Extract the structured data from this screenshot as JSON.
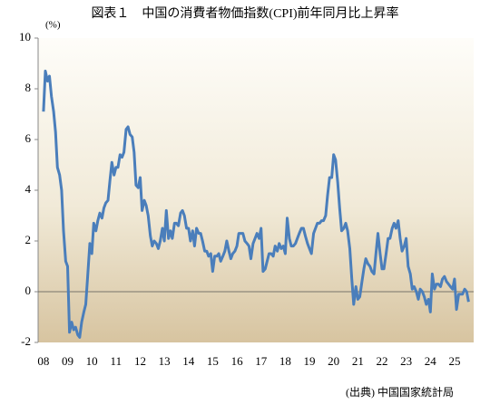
{
  "chart_data": {
    "type": "line",
    "title": "図表１　中国の消費者物価指数(CPI)前年同月比上昇率",
    "y_label": "(%)",
    "source": "(出典) 中国国家統計局",
    "xlim": [
      2007.78,
      2025.79
    ],
    "ylim": [
      -2,
      10
    ],
    "yticks": [
      -2,
      0,
      2,
      4,
      6,
      8,
      10
    ],
    "xticks": [
      {
        "value": 2008,
        "label": "08"
      },
      {
        "value": 2009,
        "label": "09"
      },
      {
        "value": 2010,
        "label": "10"
      },
      {
        "value": 2011,
        "label": "11"
      },
      {
        "value": 2012,
        "label": "12"
      },
      {
        "value": 2013,
        "label": "13"
      },
      {
        "value": 2014,
        "label": "14"
      },
      {
        "value": 2015,
        "label": "15"
      },
      {
        "value": 2016,
        "label": "16"
      },
      {
        "value": 2017,
        "label": "17"
      },
      {
        "value": 2018,
        "label": "18"
      },
      {
        "value": 2019,
        "label": "19"
      },
      {
        "value": 2020,
        "label": "20"
      },
      {
        "value": 2021,
        "label": "21"
      },
      {
        "value": 2022,
        "label": "22"
      },
      {
        "value": 2023,
        "label": "23"
      },
      {
        "value": 2024,
        "label": "24"
      },
      {
        "value": 2025,
        "label": "25"
      }
    ],
    "grid": false,
    "x": [
      2008,
      2008.08,
      2008.17,
      2008.25,
      2008.33,
      2008.42,
      2008.5,
      2008.58,
      2008.67,
      2008.75,
      2008.83,
      2008.92,
      2009,
      2009.08,
      2009.17,
      2009.25,
      2009.33,
      2009.42,
      2009.5,
      2009.58,
      2009.67,
      2009.75,
      2009.83,
      2009.92,
      2010,
      2010.08,
      2010.17,
      2010.25,
      2010.33,
      2010.42,
      2010.5,
      2010.58,
      2010.67,
      2010.75,
      2010.83,
      2010.92,
      2011,
      2011.08,
      2011.17,
      2011.25,
      2011.33,
      2011.42,
      2011.5,
      2011.58,
      2011.67,
      2011.75,
      2011.83,
      2011.92,
      2012,
      2012.08,
      2012.17,
      2012.25,
      2012.33,
      2012.42,
      2012.5,
      2012.58,
      2012.67,
      2012.75,
      2012.83,
      2012.92,
      2013,
      2013.08,
      2013.17,
      2013.25,
      2013.33,
      2013.42,
      2013.5,
      2013.58,
      2013.67,
      2013.75,
      2013.83,
      2013.92,
      2014,
      2014.08,
      2014.17,
      2014.25,
      2014.33,
      2014.42,
      2014.5,
      2014.58,
      2014.67,
      2014.75,
      2014.83,
      2014.92,
      2015,
      2015.08,
      2015.17,
      2015.25,
      2015.33,
      2015.42,
      2015.5,
      2015.58,
      2015.67,
      2015.75,
      2015.83,
      2015.92,
      2016,
      2016.08,
      2016.17,
      2016.25,
      2016.33,
      2016.42,
      2016.5,
      2016.58,
      2016.67,
      2016.75,
      2016.83,
      2016.92,
      2017,
      2017.08,
      2017.17,
      2017.25,
      2017.33,
      2017.42,
      2017.5,
      2017.58,
      2017.67,
      2017.75,
      2017.83,
      2017.92,
      2018,
      2018.08,
      2018.17,
      2018.25,
      2018.33,
      2018.42,
      2018.5,
      2018.58,
      2018.67,
      2018.75,
      2018.83,
      2018.92,
      2019,
      2019.08,
      2019.17,
      2019.25,
      2019.33,
      2019.42,
      2019.5,
      2019.58,
      2019.67,
      2019.75,
      2019.83,
      2019.92,
      2020,
      2020.08,
      2020.17,
      2020.25,
      2020.33,
      2020.42,
      2020.5,
      2020.58,
      2020.67,
      2020.75,
      2020.83,
      2020.92,
      2021,
      2021.08,
      2021.17,
      2021.25,
      2021.33,
      2021.42,
      2021.5,
      2021.58,
      2021.67,
      2021.75,
      2021.83,
      2021.92,
      2022,
      2022.08,
      2022.17,
      2022.25,
      2022.33,
      2022.42,
      2022.5,
      2022.58,
      2022.67,
      2022.75,
      2022.83,
      2022.92,
      2023,
      2023.08,
      2023.17,
      2023.25,
      2023.33,
      2023.42,
      2023.5,
      2023.58,
      2023.67,
      2023.75,
      2023.83,
      2023.92,
      2024,
      2024.08,
      2024.17,
      2024.25,
      2024.33,
      2024.42,
      2024.5,
      2024.58,
      2024.67,
      2024.75,
      2024.83,
      2024.92,
      2025,
      2025.08,
      2025.17,
      2025.25,
      2025.33,
      2025.42,
      2025.5,
      2025.58
    ],
    "series": [
      {
        "color": "#4a7ebb",
        "values": [
          7.1,
          8.7,
          8.3,
          8.5,
          7.7,
          7.1,
          6.3,
          4.9,
          4.6,
          4.0,
          2.4,
          1.2,
          1.0,
          -1.6,
          -1.2,
          -1.5,
          -1.4,
          -1.7,
          -1.8,
          -1.2,
          -0.8,
          -0.5,
          0.6,
          1.9,
          1.5,
          2.7,
          2.4,
          2.8,
          3.1,
          2.9,
          3.3,
          3.5,
          3.6,
          4.4,
          5.1,
          4.6,
          4.9,
          4.9,
          5.4,
          5.3,
          5.5,
          6.4,
          6.5,
          6.2,
          6.1,
          5.5,
          4.2,
          4.1,
          4.5,
          3.2,
          3.6,
          3.4,
          3.0,
          2.2,
          1.8,
          2.0,
          1.9,
          1.7,
          2.0,
          2.5,
          2.0,
          3.2,
          2.1,
          2.4,
          2.1,
          2.7,
          2.7,
          2.6,
          3.1,
          3.2,
          3.0,
          2.5,
          2.5,
          2.0,
          2.4,
          1.8,
          2.5,
          2.3,
          2.3,
          2.0,
          1.6,
          1.6,
          1.4,
          1.5,
          0.8,
          1.4,
          1.4,
          1.5,
          1.2,
          1.4,
          1.6,
          2.0,
          1.6,
          1.3,
          1.5,
          1.6,
          1.8,
          2.3,
          2.3,
          2.3,
          2.0,
          1.9,
          1.8,
          1.3,
          1.9,
          2.1,
          2.3,
          2.1,
          2.5,
          0.8,
          0.9,
          1.2,
          1.5,
          1.5,
          1.4,
          1.8,
          1.6,
          1.9,
          1.7,
          1.8,
          1.5,
          2.9,
          2.1,
          1.8,
          1.8,
          1.9,
          2.1,
          2.3,
          2.5,
          2.5,
          2.2,
          1.9,
          1.7,
          1.5,
          2.3,
          2.5,
          2.7,
          2.7,
          2.8,
          2.8,
          3.0,
          3.8,
          4.5,
          4.5,
          5.4,
          5.2,
          4.3,
          3.3,
          2.4,
          2.5,
          2.7,
          2.4,
          1.7,
          0.5,
          -0.5,
          0.2,
          -0.3,
          -0.2,
          0.4,
          0.9,
          1.3,
          1.1,
          1.0,
          0.8,
          0.7,
          1.5,
          2.3,
          1.5,
          0.9,
          0.9,
          1.5,
          2.1,
          2.1,
          2.5,
          2.7,
          2.5,
          2.8,
          2.1,
          1.6,
          1.8,
          2.1,
          1.0,
          0.7,
          0.1,
          0.2,
          0.0,
          -0.3,
          0.1,
          0.0,
          -0.2,
          -0.5,
          -0.3,
          -0.8,
          0.7,
          0.1,
          0.3,
          0.3,
          0.2,
          0.5,
          0.6,
          0.4,
          0.3,
          0.2,
          0.1,
          0.5,
          -0.7,
          -0.1,
          -0.1,
          -0.1,
          0.1,
          0.0,
          -0.4
        ]
      }
    ]
  }
}
